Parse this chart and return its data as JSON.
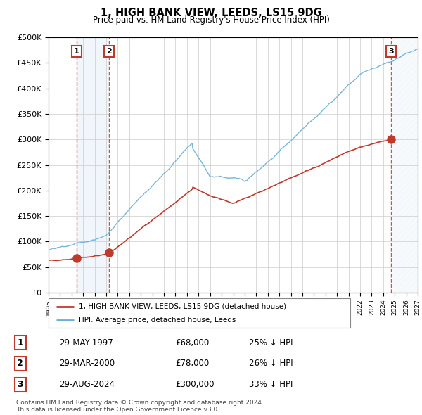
{
  "title": "1, HIGH BANK VIEW, LEEDS, LS15 9DG",
  "subtitle": "Price paid vs. HM Land Registry's House Price Index (HPI)",
  "sale_prices": [
    68000,
    78000,
    300000
  ],
  "sale_labels": [
    "1",
    "2",
    "3"
  ],
  "sale_info": [
    {
      "label": "1",
      "date": "29-MAY-1997",
      "price": "£68,000",
      "pct": "25% ↓ HPI"
    },
    {
      "label": "2",
      "date": "29-MAR-2000",
      "price": "£78,000",
      "pct": "26% ↓ HPI"
    },
    {
      "label": "3",
      "date": "29-AUG-2024",
      "price": "£300,000",
      "pct": "33% ↓ HPI"
    }
  ],
  "legend_property": "1, HIGH BANK VIEW, LEEDS, LS15 9DG (detached house)",
  "legend_hpi": "HPI: Average price, detached house, Leeds",
  "footer": "Contains HM Land Registry data © Crown copyright and database right 2024.\nThis data is licensed under the Open Government Licence v3.0.",
  "ylim": [
    0,
    500000
  ],
  "yticks": [
    0,
    50000,
    100000,
    150000,
    200000,
    250000,
    300000,
    350000,
    400000,
    450000,
    500000
  ],
  "hpi_color": "#6baed6",
  "sale_color": "#c0392b",
  "shade_color": "#d6e8f5",
  "background_color": "#ffffff"
}
